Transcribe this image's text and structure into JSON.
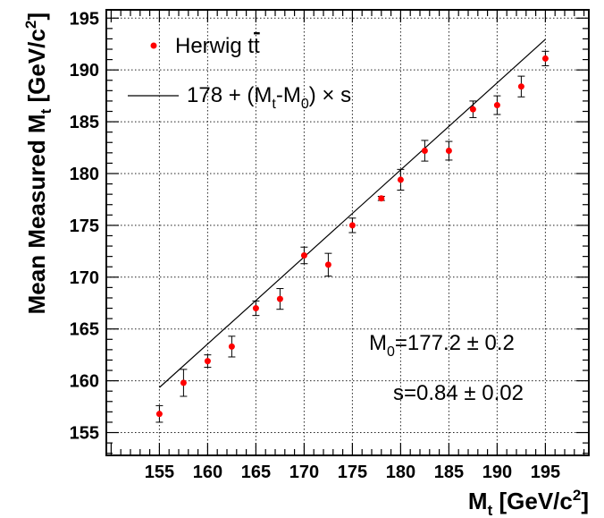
{
  "chart_data": {
    "type": "scatter",
    "xlabel": {
      "main": "M",
      "sub": "t",
      "units_pre": " [GeV/c",
      "units_sup": "2",
      "units_post": "]"
    },
    "ylabel": {
      "main": "Mean Measured M",
      "sub": "t",
      "units_pre": " [GeV/c",
      "units_sup": "2",
      "units_post": "]"
    },
    "xlim": [
      149.5,
      199.5
    ],
    "ylim": [
      152.8,
      195.8
    ],
    "xticks": [
      155,
      160,
      165,
      170,
      175,
      180,
      185,
      190,
      195
    ],
    "yticks": [
      155,
      160,
      165,
      170,
      175,
      180,
      185,
      190,
      195
    ],
    "grid": true,
    "series": [
      {
        "name": "Herwig tt̅",
        "kind": "points_with_errors",
        "color": "#ff0000",
        "x": [
          155,
          157.5,
          160,
          162.5,
          165,
          167.5,
          170,
          172.5,
          175,
          178,
          180,
          182.5,
          185,
          187.5,
          190,
          192.5,
          195
        ],
        "y": [
          156.8,
          159.8,
          161.9,
          163.3,
          167.0,
          167.9,
          172.1,
          171.2,
          175.0,
          177.6,
          179.4,
          182.2,
          182.2,
          186.2,
          186.6,
          188.4,
          191.1
        ],
        "yerr": [
          0.8,
          1.3,
          0.6,
          1.0,
          0.7,
          1.0,
          0.8,
          1.1,
          0.7,
          0.2,
          1.0,
          1.0,
          0.9,
          0.8,
          0.9,
          1.0,
          0.7
        ]
      },
      {
        "name": "178 + (M_t-M_0) × s",
        "kind": "fit_line",
        "color": "#000000",
        "intercept": 178,
        "M0": 177.2,
        "slope": 0.84,
        "x_range": [
          155,
          195
        ]
      }
    ],
    "legend": {
      "position": "top-left",
      "entries": [
        {
          "parts": [
            {
              "t": "Herwig t"
            },
            {
              "t": "t",
              "overline": true
            }
          ]
        },
        {
          "parts": [
            {
              "t": "178 + (M"
            },
            {
              "t": "t",
              "sub": true
            },
            {
              "t": "-M"
            },
            {
              "t": "0",
              "sub": true
            },
            {
              "t": ") × s"
            }
          ]
        }
      ]
    },
    "annotations": {
      "m0": {
        "pre": "M",
        "sub": "0",
        "post": "=177.2 ± 0.2"
      },
      "s": {
        "text": "s=0.84  ± 0.02"
      }
    }
  }
}
